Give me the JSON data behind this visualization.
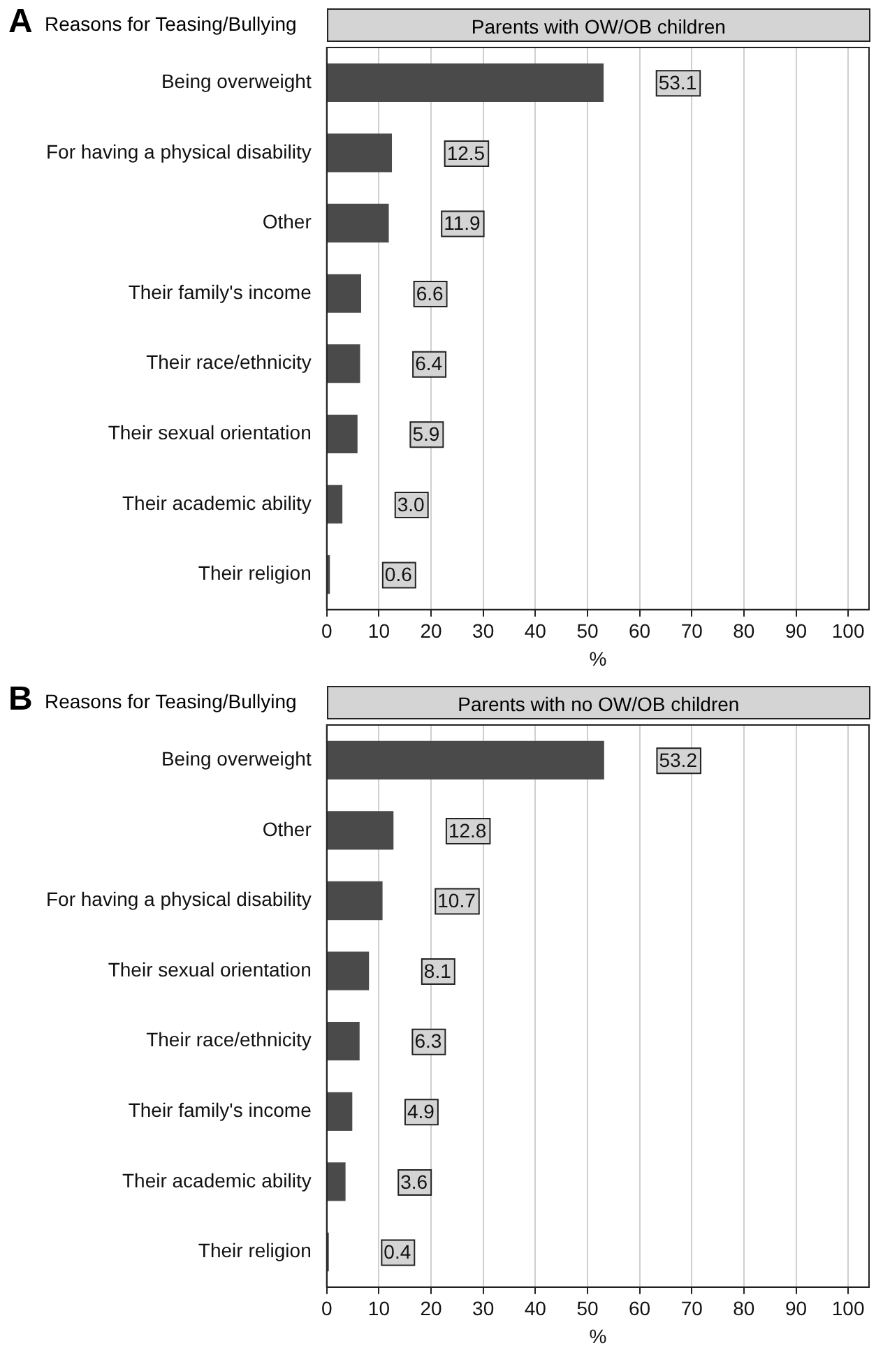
{
  "chart_data": [
    {
      "type": "bar",
      "orientation": "horizontal",
      "title": "A",
      "ylabel": "Reasons for Teasing/Bullying",
      "subtitle": "Parents with OW/OB children",
      "xlabel": "%",
      "categories": [
        "Being overweight",
        "For having a physical disability",
        "Other",
        "Their family's income",
        "Their race/ethnicity",
        "Their sexual orientation",
        "Their academic ability",
        "Their religion"
      ],
      "values": [
        53.1,
        12.5,
        11.9,
        6.6,
        6.4,
        5.9,
        3.0,
        0.6
      ],
      "value_labels": [
        "53.1",
        "12.5",
        "11.9",
        "6.6",
        "6.4",
        "5.9",
        "3.0",
        "0.6"
      ],
      "color": "#4a4a4a",
      "xlim": [
        0,
        104
      ],
      "xticks": [
        0,
        10,
        20,
        30,
        40,
        50,
        60,
        70,
        80,
        90,
        100
      ],
      "grid": "x"
    },
    {
      "type": "bar",
      "orientation": "horizontal",
      "title": "B",
      "ylabel": "Reasons for Teasing/Bullying",
      "subtitle": "Parents with no OW/OB children",
      "xlabel": "%",
      "categories": [
        "Being overweight",
        "Other",
        "For having a physical disability",
        "Their sexual orientation",
        "Their race/ethnicity",
        "Their family's income",
        "Their academic ability",
        "Their religion"
      ],
      "values": [
        53.2,
        12.8,
        10.7,
        8.1,
        6.3,
        4.9,
        3.6,
        0.4
      ],
      "value_labels": [
        "53.2",
        "12.8",
        "10.7",
        "8.1",
        "6.3",
        "4.9",
        "3.6",
        "0.4"
      ],
      "color": "#4a4a4a",
      "xlim": [
        0,
        104
      ],
      "xticks": [
        0,
        10,
        20,
        30,
        40,
        50,
        60,
        70,
        80,
        90,
        100
      ],
      "grid": "x"
    }
  ]
}
